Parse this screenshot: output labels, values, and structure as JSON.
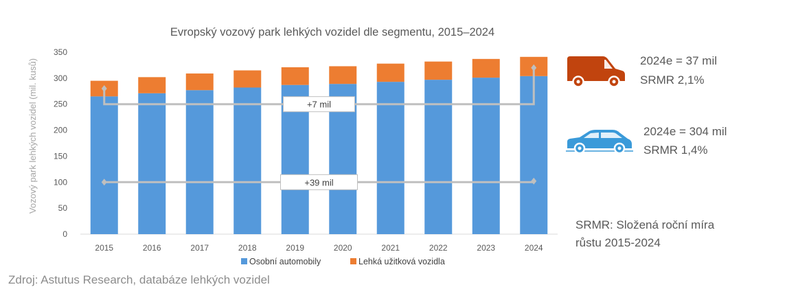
{
  "chart_data": {
    "type": "bar",
    "stacked": true,
    "title": "Evropský vozový park lehkých vozidel dle segmentu, 2015–2024",
    "ylabel": "Vozový park lehkých vozidel (mil. kusů)",
    "xlabel": "",
    "categories": [
      "2015",
      "2016",
      "2017",
      "2018",
      "2019",
      "2020",
      "2021",
      "2022",
      "2023",
      "2024"
    ],
    "ylim": [
      0,
      350
    ],
    "yticks": [
      0,
      50,
      100,
      150,
      200,
      250,
      300,
      350
    ],
    "series": [
      {
        "name": "Osobní automobily",
        "color": "#5599DB",
        "values": [
          265,
          271,
          277,
          282,
          287,
          289,
          293,
          297,
          301,
          304
        ]
      },
      {
        "name": "Lehká užitková vozidla",
        "color": "#ED7D31",
        "values": [
          30,
          31,
          32,
          33,
          34,
          34,
          35,
          35,
          36,
          37
        ]
      }
    ],
    "legend_position": "bottom",
    "grid": false,
    "annotations": [
      {
        "label": "+7 mil",
        "from": "2015",
        "to": "2024",
        "y_start": 280,
        "y_end": 320,
        "y_line": 250
      },
      {
        "label": "+39 mil",
        "from": "2015",
        "to": "2024",
        "y_start": 100,
        "y_end": 102,
        "y_line": 100
      }
    ]
  },
  "side_panel": {
    "van": {
      "icon": "van-icon",
      "color": "#C1440E",
      "value_text": "2024e = 37 mil",
      "cagr_text": "SRMR 2,1%"
    },
    "car": {
      "icon": "car-icon",
      "color": "#3A9AD9",
      "value_text": "2024e = 304 mil",
      "cagr_text": "SRMR 1,4%"
    },
    "definition_line1": "SRMR: Složená roční míra",
    "definition_line2": "růstu 2015-2024"
  },
  "source": "Zdroj: Astutus Research, databáze lehkých vozidel"
}
